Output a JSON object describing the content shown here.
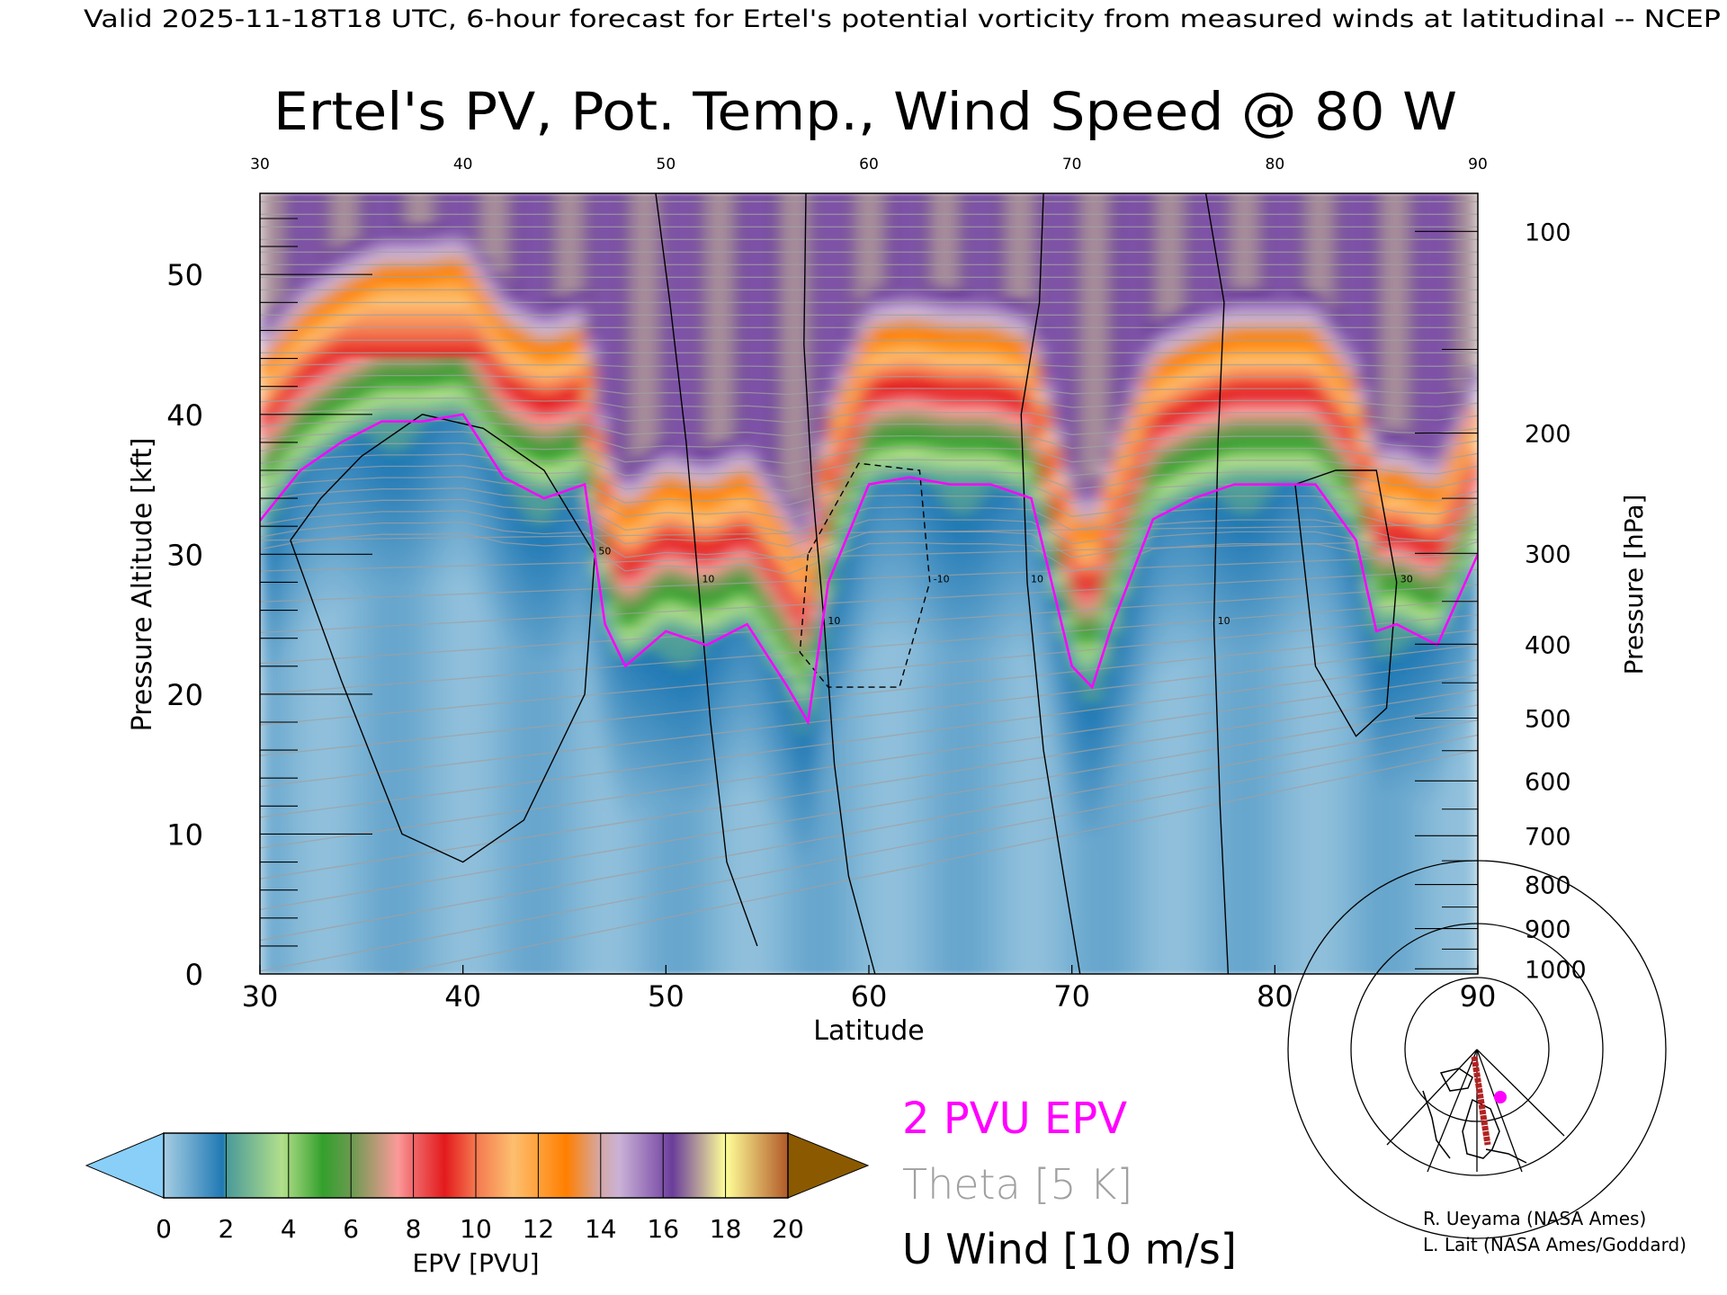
{
  "header": {
    "valid_line": "Valid 2025-11-18T18 UTC, 6-hour forecast for Ertel's potential vorticity from measured winds at latitudinal -- NCEP"
  },
  "chart_data": {
    "type": "heatmap",
    "title": "Ertel's PV, Pot. Temp., Wind Speed @ 80 W",
    "xlabel": "Latitude",
    "ylabel": "Pressure Altitude [kft]",
    "ylabel_right": "Pressure [hPa]",
    "xlim": [
      30,
      90
    ],
    "ylim": [
      0,
      55.8
    ],
    "x_ticks": [
      30,
      40,
      50,
      60,
      70,
      80,
      90
    ],
    "x_tick_labels": [
      "30",
      "40",
      "50",
      "60",
      "70",
      "80",
      "90"
    ],
    "y_ticks": [
      0,
      10,
      20,
      30,
      40,
      50
    ],
    "y_tick_labels": [
      "0",
      "10",
      "20",
      "30",
      "40",
      "50"
    ],
    "pressure_ticks": [
      100,
      200,
      300,
      400,
      500,
      600,
      700,
      800,
      900,
      1000
    ],
    "pressure_tick_labels": [
      "100",
      "200",
      "300",
      "400",
      "500",
      "600",
      "700",
      "800",
      "900",
      "1000"
    ],
    "tropopause_2pvu": {
      "lat": [
        30,
        32,
        34,
        36,
        38,
        40,
        42,
        44,
        46,
        47,
        48,
        50,
        52,
        54,
        56,
        57,
        58,
        60,
        62,
        64,
        66,
        68,
        70,
        71,
        72,
        74,
        76,
        78,
        80,
        82,
        84,
        85,
        86,
        88,
        90
      ],
      "kft": [
        32.4,
        36,
        38,
        39.5,
        39.5,
        40,
        35.5,
        34,
        35,
        25,
        22,
        24.5,
        23.5,
        25,
        20.5,
        18,
        28,
        35,
        35.5,
        35,
        35,
        34,
        22,
        20.5,
        25,
        32.5,
        34,
        35,
        35,
        35,
        31,
        24.5,
        25,
        23.5,
        30
      ]
    },
    "wind_contours": [
      {
        "level": "10",
        "dashed": false,
        "lat": [
          49.5,
          50.2,
          51,
          51.6,
          52.2,
          53,
          54.5
        ],
        "kft": [
          55.8,
          48,
          38,
          28,
          18,
          8,
          2
        ]
      },
      {
        "level": "10",
        "dashed": false,
        "lat": [
          56.9,
          56.8,
          57.2,
          57.8,
          58.3,
          59,
          60.3
        ],
        "kft": [
          55.8,
          45,
          35,
          25,
          15,
          7,
          0
        ]
      },
      {
        "level": "10",
        "dashed": false,
        "lat": [
          68.6,
          68.4,
          67.5,
          67.8,
          68.6,
          69.6,
          70.4
        ],
        "kft": [
          55.8,
          48,
          40,
          28,
          16,
          7,
          0
        ]
      },
      {
        "level": "10",
        "dashed": false,
        "lat": [
          76.6,
          77.5,
          77.2,
          77.0,
          77.3,
          77.7
        ],
        "kft": [
          55.8,
          48,
          38,
          25,
          12,
          0
        ]
      },
      {
        "level": "50",
        "dashed": false,
        "lat": [
          31.5,
          34,
          37,
          40,
          43,
          46,
          46.5,
          44,
          41,
          38,
          35,
          33,
          31.5
        ],
        "kft": [
          31,
          21,
          10,
          8,
          11,
          20,
          30,
          36,
          39,
          40,
          37,
          34,
          31
        ]
      },
      {
        "level": "30",
        "dashed": false,
        "lat": [
          81,
          82,
          84,
          85.5,
          86,
          85,
          83,
          81
        ],
        "kft": [
          35,
          22,
          17,
          19,
          28,
          36,
          36,
          35
        ]
      },
      {
        "level": "-10",
        "dashed": true,
        "lat": [
          57,
          56.6,
          58,
          61.5,
          63,
          62.5,
          59.5,
          57
        ],
        "kft": [
          30,
          23,
          20.5,
          20.5,
          28,
          36,
          36.5,
          30
        ]
      }
    ],
    "colorbar": {
      "label": "EPV [PVU]",
      "range": [
        0,
        20
      ],
      "ticks": [
        0,
        2,
        4,
        6,
        8,
        10,
        12,
        14,
        16,
        18,
        20
      ],
      "tick_labels": [
        "0",
        "2",
        "4",
        "6",
        "8",
        "10",
        "12",
        "14",
        "16",
        "18",
        "20"
      ],
      "under_color": "#89cff8",
      "over_color": "#8b5a00",
      "stops": [
        {
          "v": 0,
          "c": "#a6cee3"
        },
        {
          "v": 1.9,
          "c": "#1f78b4"
        },
        {
          "v": 2.0,
          "c": "#4a9a9a"
        },
        {
          "v": 3.8,
          "c": "#b2df8a"
        },
        {
          "v": 5.1,
          "c": "#33a02c"
        },
        {
          "v": 6,
          "c": "#6a9a50"
        },
        {
          "v": 7.5,
          "c": "#fb9a99"
        },
        {
          "v": 8.0,
          "c": "#f0686a"
        },
        {
          "v": 9.0,
          "c": "#e31a1c"
        },
        {
          "v": 10.0,
          "c": "#f47850"
        },
        {
          "v": 11.2,
          "c": "#fdbf6f"
        },
        {
          "v": 12.9,
          "c": "#ff7f00"
        },
        {
          "v": 14.0,
          "c": "#d4a8a8"
        },
        {
          "v": 14.6,
          "c": "#cab2d6"
        },
        {
          "v": 15.8,
          "c": "#8a60b0"
        },
        {
          "v": 16.3,
          "c": "#6a3d9a"
        },
        {
          "v": 18.0,
          "c": "#ffff99"
        },
        {
          "v": 20,
          "c": "#b15928"
        }
      ]
    },
    "legend": {
      "pv_label": "2 PVU EPV",
      "pv_color": "#ff00ff",
      "theta_label": "Theta [5 K]",
      "theta_color": "#a0a0a0",
      "wind_label": "U Wind [10 m/s]",
      "wind_color": "#000000"
    },
    "grid": false
  },
  "map": {
    "section_color": "#b22222",
    "marker_color": "#ff00ff"
  },
  "credits": [
    "R. Ueyama (NASA Ames)",
    "L. Lait (NASA Ames/Goddard)"
  ]
}
